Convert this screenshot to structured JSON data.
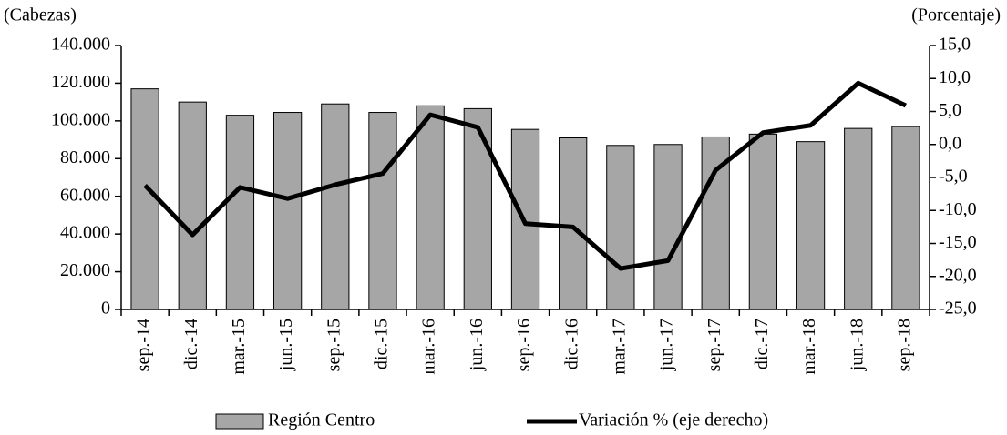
{
  "chart_data": {
    "type": "bar",
    "y_label": "(Cabezas)",
    "y2_label": "(Porcentaje)",
    "categories": [
      "sep.-14",
      "dic.-14",
      "mar.-15",
      "jun.-15",
      "sep.-15",
      "dic.-15",
      "mar.-16",
      "jun.-16",
      "sep.-16",
      "dic.-16",
      "mar.-17",
      "jun.-17",
      "sep.-17",
      "dic.-17",
      "mar.-18",
      "jun.-18",
      "sep.-18"
    ],
    "series": [
      {
        "name": "Región Centro",
        "type": "bar",
        "color": "#a6a6a6",
        "values": [
          117000,
          110000,
          103000,
          104500,
          109000,
          104500,
          108000,
          106500,
          95500,
          91000,
          87000,
          87500,
          91500,
          93000,
          89000,
          96000,
          97000
        ]
      },
      {
        "name": "Variación % (eje derecho)",
        "type": "line",
        "axis": "y2",
        "color": "#000000",
        "values": [
          -6.2,
          -13.7,
          -6.5,
          -8.2,
          -6.1,
          -4.4,
          4.5,
          2.6,
          -12.0,
          -12.5,
          -18.8,
          -17.6,
          -3.9,
          1.8,
          2.9,
          9.3,
          5.9
        ]
      }
    ],
    "ylim": [
      0,
      140000
    ],
    "yticks": [
      0,
      {
        "value": 20000,
        "label": "20.000"
      },
      {
        "value": 40000,
        "label": "40.000"
      },
      {
        "value": 60000,
        "label": "60.000"
      },
      {
        "value": 80000,
        "label": "80.000"
      },
      {
        "value": 100000,
        "label": "100.000"
      },
      {
        "value": 120000,
        "label": "120.000"
      },
      {
        "value": 140000,
        "label": "140.000"
      }
    ],
    "y2lim": [
      -25,
      15
    ],
    "y2ticks": [
      {
        "value": -25,
        "label": "-25,0"
      },
      {
        "value": -20,
        "label": "-20,0"
      },
      {
        "value": -15,
        "label": "-15,0"
      },
      {
        "value": -10,
        "label": "-10,0"
      },
      {
        "value": -5,
        "label": "-5,0"
      },
      {
        "value": 0,
        "label": "0,0"
      },
      {
        "value": 5,
        "label": "5,0"
      },
      {
        "value": 10,
        "label": "10,0"
      },
      {
        "value": 15,
        "label": "15,0"
      }
    ],
    "grid": false,
    "legend": "bottom"
  }
}
